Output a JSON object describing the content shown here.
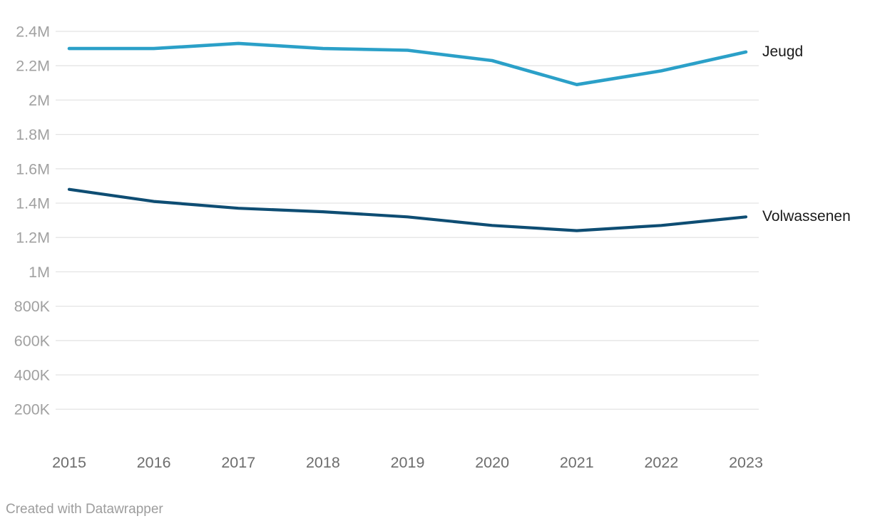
{
  "chart_data": {
    "type": "line",
    "title": "",
    "categories": [
      "2015",
      "2016",
      "2017",
      "2018",
      "2019",
      "2020",
      "2021",
      "2022",
      "2023"
    ],
    "series": [
      {
        "name": "Jeugd",
        "color": "#2ba0c8",
        "values": [
          2300000,
          2300000,
          2330000,
          2300000,
          2290000,
          2230000,
          2090000,
          2170000,
          2280000
        ]
      },
      {
        "name": "Volwassenen",
        "color": "#0e4d73",
        "values": [
          1480000,
          1410000,
          1370000,
          1350000,
          1320000,
          1270000,
          1240000,
          1270000,
          1320000
        ]
      }
    ],
    "y_ticks": [
      {
        "label": "2.4M",
        "value": 2400000
      },
      {
        "label": "2.2M",
        "value": 2200000
      },
      {
        "label": "2M",
        "value": 2000000
      },
      {
        "label": "1.8M",
        "value": 1800000
      },
      {
        "label": "1.6M",
        "value": 1600000
      },
      {
        "label": "1.4M",
        "value": 1400000
      },
      {
        "label": "1.2M",
        "value": 1200000
      },
      {
        "label": "1M",
        "value": 1000000
      },
      {
        "label": "800K",
        "value": 800000
      },
      {
        "label": "600K",
        "value": 600000
      },
      {
        "label": "400K",
        "value": 400000
      },
      {
        "label": "200K",
        "value": 200000
      }
    ],
    "ylim": [
      200000,
      2400000
    ],
    "grid": "horizontal",
    "legend_position": "right-of-line-end",
    "colors": {
      "gridline": "#e4e4e4",
      "y_tick_text": "#a1a1a1",
      "x_tick_text": "#6d6d6d",
      "series_label_text": "#1a1a1a"
    }
  },
  "footer": {
    "credit": "Created with Datawrapper"
  }
}
